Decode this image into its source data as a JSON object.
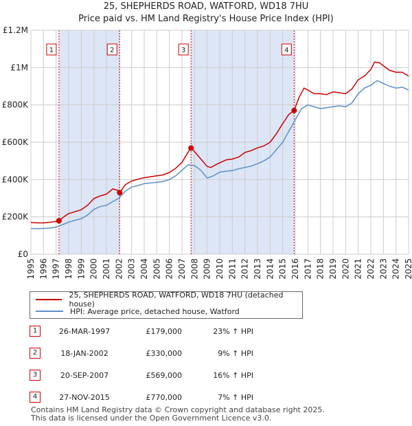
{
  "title_line1": "25, SHEPHERDS ROAD, WATFORD, WD18 7HU",
  "title_line2": "Price paid vs. HM Land Registry's House Price Index (HPI)",
  "legend": {
    "property": "25, SHEPHERDS ROAD, WATFORD, WD18 7HU (detached house)",
    "hpi": "HPI: Average price, detached house, Watford"
  },
  "sales": [
    {
      "num": "1",
      "date": "26-MAR-1997",
      "price": "£179,000",
      "hpi": "23% ↑ HPI"
    },
    {
      "num": "2",
      "date": "18-JAN-2002",
      "price": "£330,000",
      "hpi": "9% ↑ HPI"
    },
    {
      "num": "3",
      "date": "20-SEP-2007",
      "price": "£569,000",
      "hpi": "16% ↑ HPI"
    },
    {
      "num": "4",
      "date": "27-NOV-2015",
      "price": "£770,000",
      "hpi": "7% ↑ HPI"
    }
  ],
  "footer_line1": "Contains HM Land Registry data © Crown copyright and database right 2025.",
  "footer_line2": "This data is licensed under the Open Government Licence v3.0.",
  "colors": {
    "property": "#cc0000",
    "hpi": "#5b8fc9",
    "shade": "#dde6f6"
  },
  "chart_data": {
    "type": "line",
    "title": "Price paid vs. HM Land Registry's House Price Index (HPI)",
    "xlabel": "",
    "ylabel": "",
    "xlim": [
      1995,
      2025
    ],
    "ylim": [
      0,
      1200000
    ],
    "y_ticks": [
      0,
      200000,
      400000,
      600000,
      800000,
      1000000,
      1200000
    ],
    "y_tick_labels": [
      "£0",
      "£200K",
      "£400K",
      "£600K",
      "£800K",
      "£1M",
      "£1.2M"
    ],
    "x_ticks": [
      1995,
      1996,
      1997,
      1998,
      1999,
      2000,
      2001,
      2002,
      2003,
      2004,
      2005,
      2006,
      2007,
      2008,
      2009,
      2010,
      2011,
      2012,
      2013,
      2014,
      2015,
      2016,
      2017,
      2018,
      2019,
      2020,
      2021,
      2022,
      2023,
      2024,
      2025
    ],
    "x_tick_labels": [
      "1995",
      "1996",
      "1997",
      "1998",
      "1999",
      "2000",
      "2001",
      "2002",
      "2003",
      "2004",
      "2005",
      "2006",
      "2007",
      "2008",
      "2009",
      "2010",
      "2011",
      "2012",
      "2013",
      "2014",
      "2015",
      "2016",
      "2017",
      "2018",
      "2019",
      "2020",
      "2021",
      "2022",
      "2023",
      "2024",
      "2025"
    ],
    "shaded_ranges": [
      [
        1997.23,
        2002.05
      ],
      [
        2007.72,
        2015.91
      ]
    ],
    "markers": [
      {
        "label": "1",
        "x": 1997.23,
        "y": 179000
      },
      {
        "label": "2",
        "x": 2002.05,
        "y": 330000
      },
      {
        "label": "3",
        "x": 2007.72,
        "y": 569000
      },
      {
        "label": "4",
        "x": 2015.91,
        "y": 770000
      }
    ],
    "series": [
      {
        "name": "25, SHEPHERDS ROAD, WATFORD, WD18 7HU (detached house)",
        "x": [
          1995,
          1995.5,
          1996,
          1996.5,
          1997,
          1997.23,
          1997.6,
          1998,
          1998.5,
          1999,
          1999.5,
          2000,
          2000.5,
          2001,
          2001.5,
          2002,
          2002.05,
          2002.5,
          2003,
          2003.5,
          2004,
          2004.5,
          2005,
          2005.5,
          2006,
          2006.5,
          2007,
          2007.5,
          2007.72,
          2008,
          2008.5,
          2009,
          2009.3,
          2009.7,
          2010,
          2010.5,
          2011,
          2011.5,
          2012,
          2012.5,
          2013,
          2013.5,
          2014,
          2014.5,
          2015,
          2015.5,
          2015.91,
          2016.3,
          2016.7,
          2017,
          2017.5,
          2018,
          2018.5,
          2019,
          2019.5,
          2020,
          2020.5,
          2021,
          2021.5,
          2022,
          2022.3,
          2022.7,
          2023,
          2023.5,
          2024,
          2024.5,
          2025
        ],
        "values": [
          170000,
          168000,
          168000,
          171000,
          176000,
          179000,
          200000,
          218000,
          228000,
          238000,
          262000,
          298000,
          312000,
          322000,
          350000,
          340000,
          330000,
          372000,
          392000,
          402000,
          410000,
          415000,
          420000,
          425000,
          438000,
          460000,
          492000,
          548000,
          569000,
          550000,
          510000,
          470000,
          465000,
          480000,
          490000,
          505000,
          510000,
          520000,
          545000,
          555000,
          570000,
          580000,
          600000,
          645000,
          700000,
          750000,
          770000,
          840000,
          890000,
          880000,
          860000,
          860000,
          855000,
          870000,
          865000,
          860000,
          885000,
          935000,
          955000,
          990000,
          1030000,
          1025000,
          1010000,
          985000,
          975000,
          975000,
          955000
        ]
      },
      {
        "name": "HPI: Average price, detached house, Watford",
        "x": [
          1995,
          1995.5,
          1996,
          1996.5,
          1997,
          1997.5,
          1998,
          1998.5,
          1999,
          1999.5,
          2000,
          2000.5,
          2001,
          2001.5,
          2002,
          2002.5,
          2003,
          2003.5,
          2004,
          2004.5,
          2005,
          2005.5,
          2006,
          2006.5,
          2007,
          2007.5,
          2008,
          2008.5,
          2009,
          2009.5,
          2010,
          2010.5,
          2011,
          2011.5,
          2012,
          2012.5,
          2013,
          2013.5,
          2014,
          2014.5,
          2015,
          2015.5,
          2016,
          2016.5,
          2017,
          2017.5,
          2018,
          2018.5,
          2019,
          2019.5,
          2020,
          2020.5,
          2021,
          2021.5,
          2022,
          2022.5,
          2023,
          2023.5,
          2024,
          2024.5,
          2025
        ],
        "values": [
          138000,
          137000,
          138000,
          140000,
          145000,
          158000,
          172000,
          182000,
          190000,
          210000,
          240000,
          255000,
          262000,
          282000,
          300000,
          338000,
          360000,
          368000,
          378000,
          382000,
          385000,
          390000,
          400000,
          420000,
          450000,
          480000,
          475000,
          450000,
          408000,
          420000,
          440000,
          445000,
          448000,
          458000,
          465000,
          472000,
          485000,
          500000,
          520000,
          560000,
          600000,
          660000,
          720000,
          780000,
          800000,
          790000,
          780000,
          785000,
          790000,
          795000,
          790000,
          810000,
          860000,
          890000,
          905000,
          930000,
          915000,
          900000,
          890000,
          895000,
          880000
        ]
      }
    ]
  }
}
